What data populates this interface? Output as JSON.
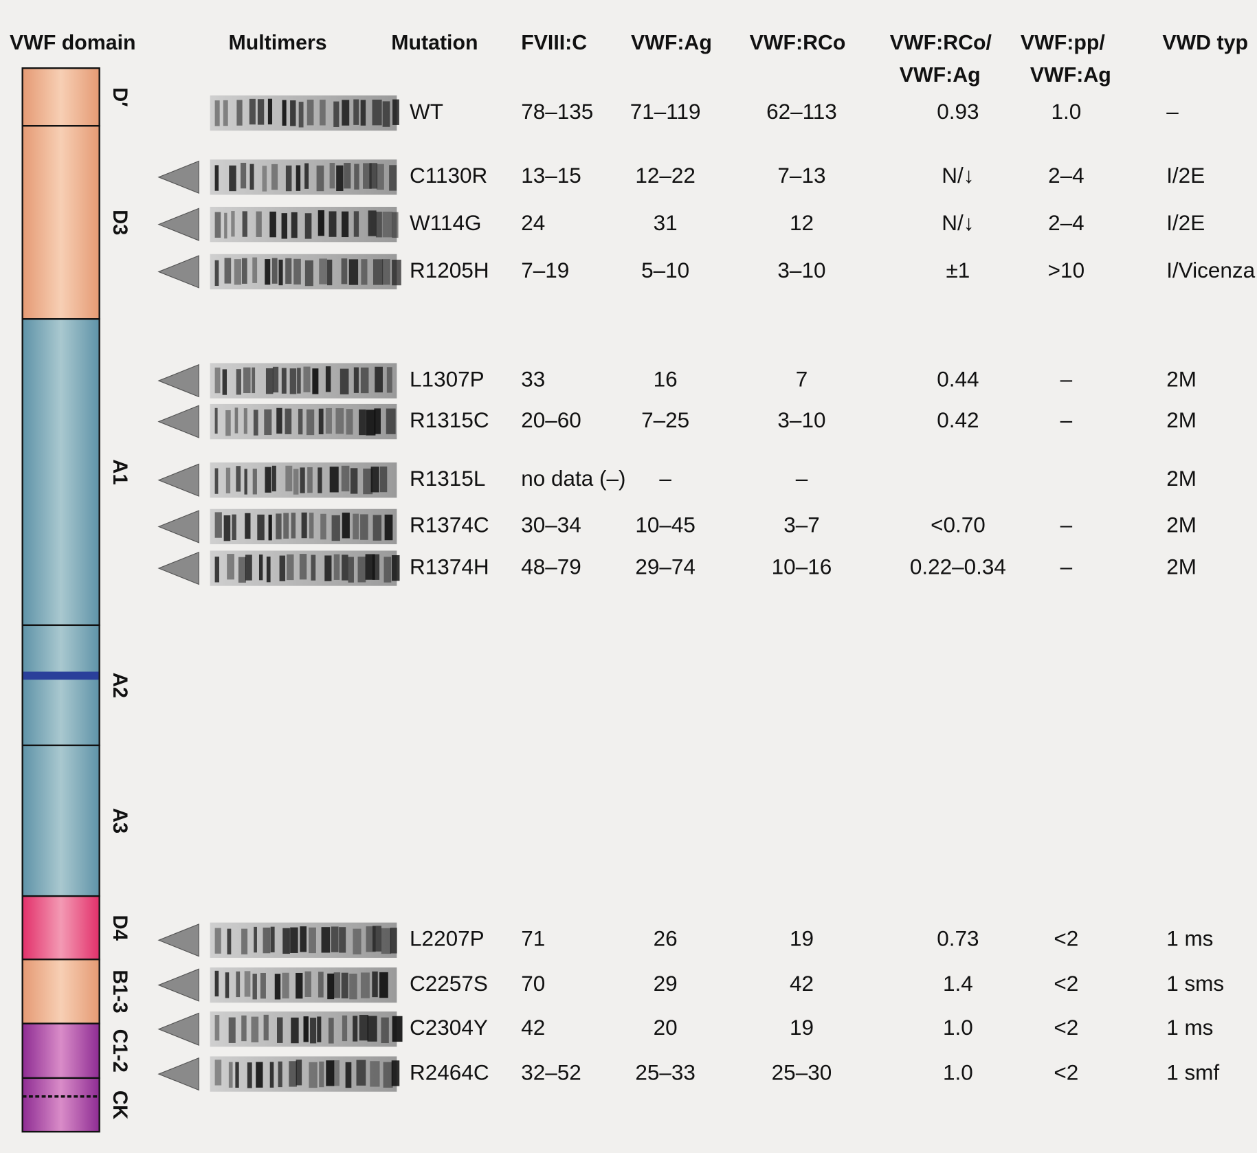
{
  "headers": [
    [
      "VWF domain"
    ],
    [
      "Multimers"
    ],
    [
      "Mutation"
    ],
    [
      "FVIII:C"
    ],
    [
      "VWF:Ag"
    ],
    [
      "VWF:RCo"
    ],
    [
      "VWF:RCo/",
      "VWF:Ag"
    ],
    [
      "VWF:pp/",
      "VWF:Ag"
    ],
    [
      "VWD typ"
    ]
  ],
  "domains": [
    "D′",
    "D3",
    "A1",
    "A2",
    "A3",
    "D4",
    "B1-3",
    "C1-2",
    "CK"
  ],
  "rows": [
    {
      "mutation": "WT",
      "fviii_c": "78–135",
      "vwf_ag": "71–119",
      "vwf_rco": "62–113",
      "rco_ag": "0.93",
      "pp_ag": "1.0",
      "vwd_type": "–"
    },
    {
      "mutation": "C1130R",
      "fviii_c": "13–15",
      "vwf_ag": "12–22",
      "vwf_rco": "7–13",
      "rco_ag": "N/↓",
      "pp_ag": "2–4",
      "vwd_type": "I/2E"
    },
    {
      "mutation": "W114G",
      "fviii_c": "24",
      "vwf_ag": "31",
      "vwf_rco": "12",
      "rco_ag": "N/↓",
      "pp_ag": "2–4",
      "vwd_type": "I/2E"
    },
    {
      "mutation": "R1205H",
      "fviii_c": "7–19",
      "vwf_ag": "5–10",
      "vwf_rco": "3–10",
      "rco_ag": "±1",
      "pp_ag": ">10",
      "vwd_type": "I/Vicenza"
    },
    {
      "mutation": "L1307P",
      "fviii_c": "33",
      "vwf_ag": "16",
      "vwf_rco": "7",
      "rco_ag": "0.44",
      "pp_ag": "–",
      "vwd_type": "2M"
    },
    {
      "mutation": "R1315C",
      "fviii_c": "20–60",
      "vwf_ag": "7–25",
      "vwf_rco": "3–10",
      "rco_ag": "0.42",
      "pp_ag": "–",
      "vwd_type": "2M"
    },
    {
      "mutation": "R1315L",
      "fviii_c": "no data (–)",
      "vwf_ag": "–",
      "vwf_rco": "–",
      "rco_ag": null,
      "pp_ag": null,
      "vwd_type": "2M"
    },
    {
      "mutation": "R1374C",
      "fviii_c": "30–34",
      "vwf_ag": "10–45",
      "vwf_rco": "3–7",
      "rco_ag": "<0.70",
      "pp_ag": "–",
      "vwd_type": "2M"
    },
    {
      "mutation": "R1374H",
      "fviii_c": "48–79",
      "vwf_ag": "29–74",
      "vwf_rco": "10–16",
      "rco_ag": "0.22–0.34",
      "pp_ag": "–",
      "vwd_type": "2M"
    },
    {
      "mutation": "L2207P",
      "fviii_c": "71",
      "vwf_ag": "26",
      "vwf_rco": "19",
      "rco_ag": "0.73",
      "pp_ag": "<2",
      "vwd_type": "1 ms"
    },
    {
      "mutation": "C2257S",
      "fviii_c": "70",
      "vwf_ag": "29",
      "vwf_rco": "42",
      "rco_ag": "1.4",
      "pp_ag": "<2",
      "vwd_type": "1 sms"
    },
    {
      "mutation": "C2304Y",
      "fviii_c": "42",
      "vwf_ag": "20",
      "vwf_rco": "19",
      "rco_ag": "1.0",
      "pp_ag": "<2",
      "vwd_type": "1 ms"
    },
    {
      "mutation": "R2464C",
      "fviii_c": "32–52",
      "vwf_ag": "25–33",
      "vwf_rco": "25–30",
      "rco_ag": "1.0",
      "pp_ag": "<2",
      "vwd_type": "1 smf"
    }
  ]
}
